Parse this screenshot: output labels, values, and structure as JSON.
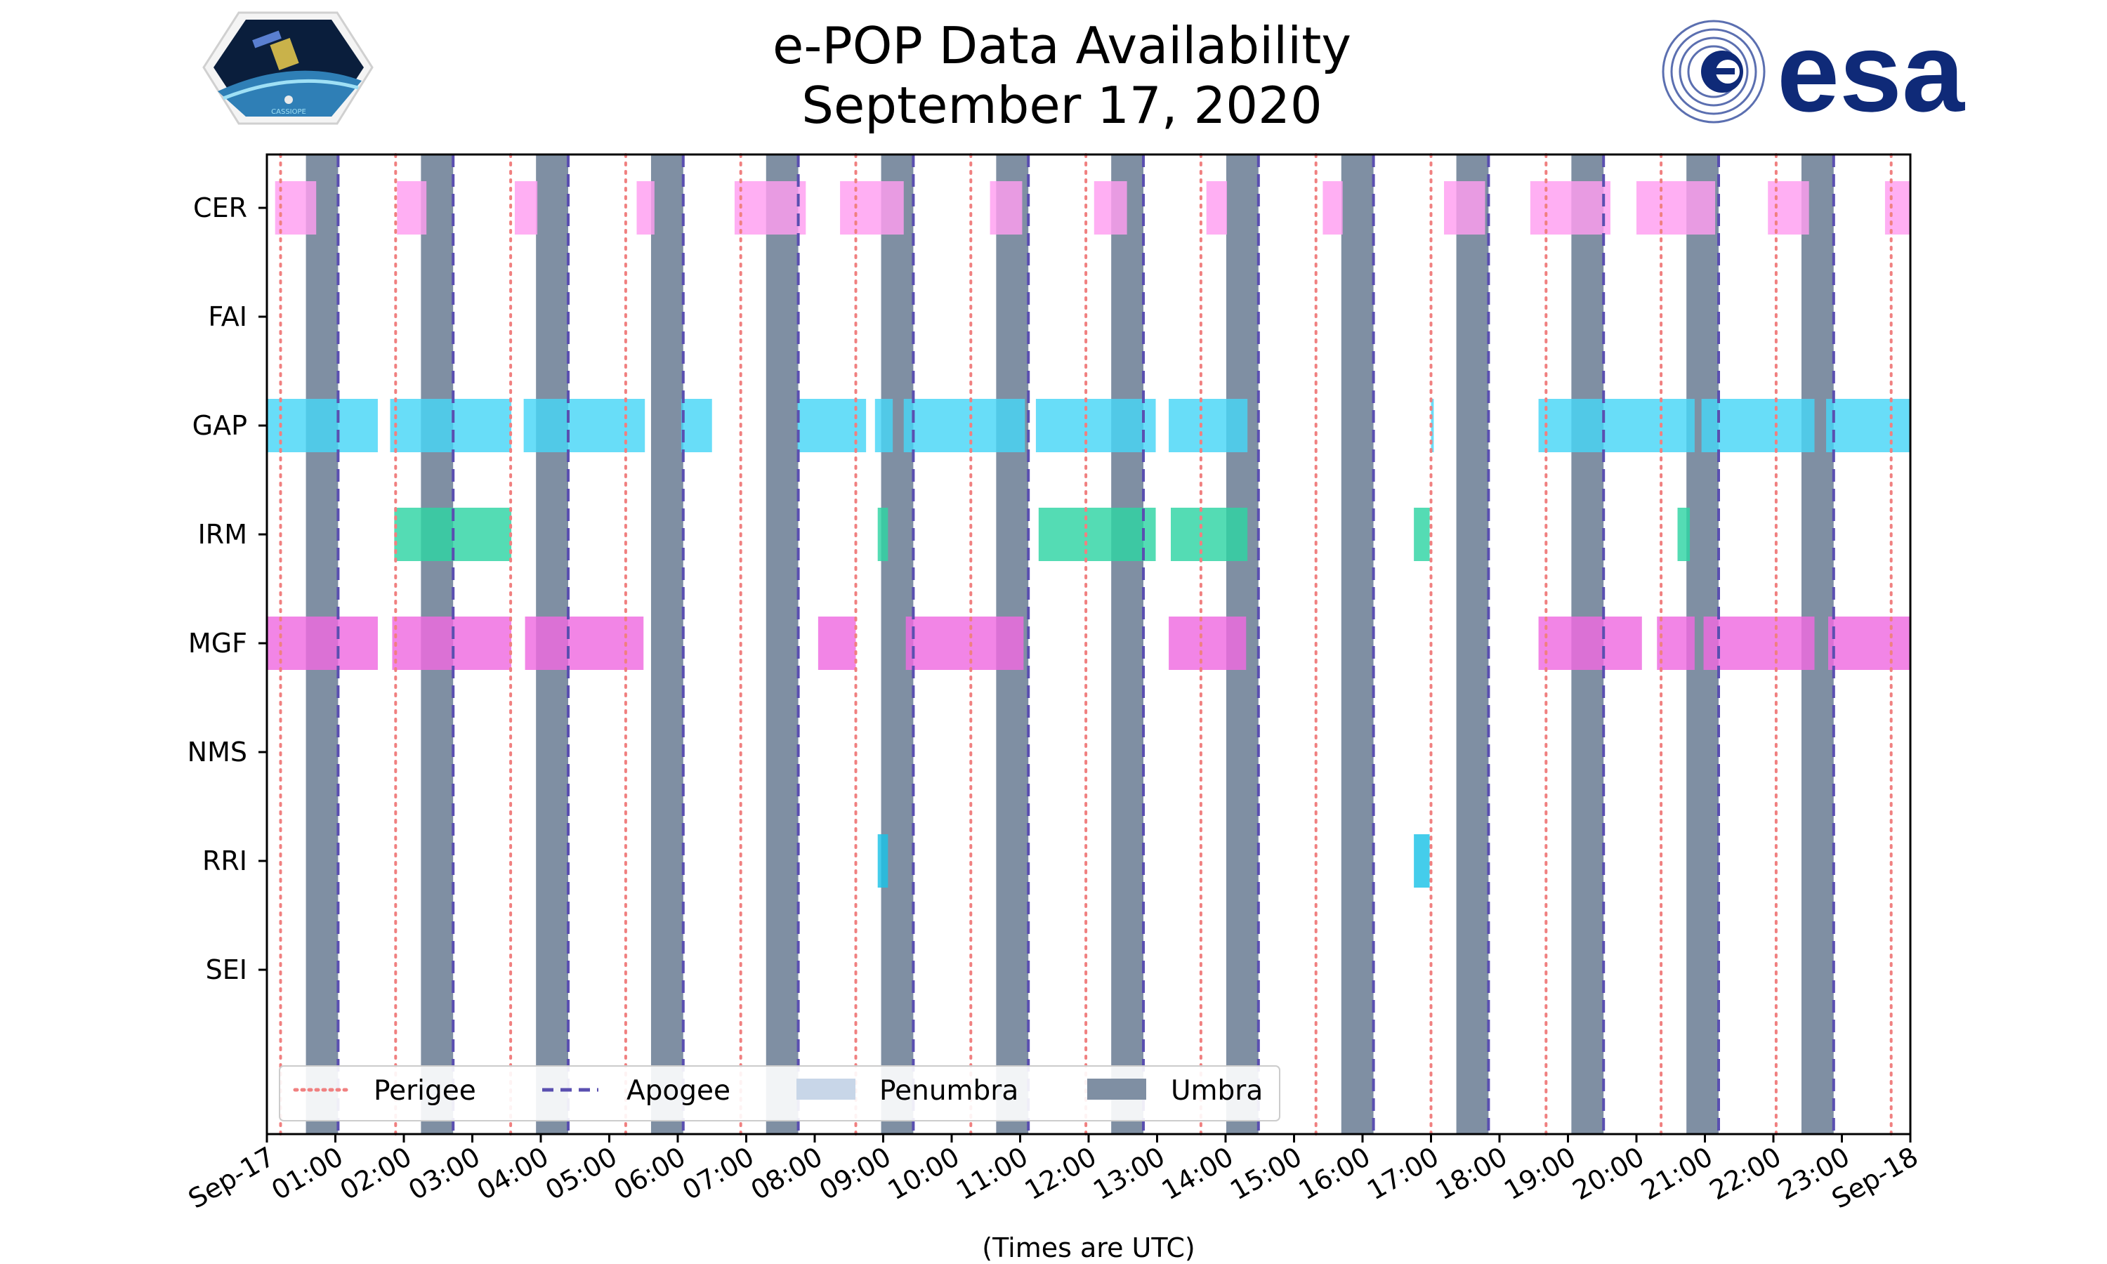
{
  "chart_data": {
    "type": "timeline",
    "title_line1": "e-POP Data Availability",
    "title_line2": "September 17, 2020",
    "xlabel": "(Times are UTC)",
    "xlim_hours": [
      0,
      24
    ],
    "x_ticks": [
      {
        "hour": 0,
        "label": "Sep-17"
      },
      {
        "hour": 1,
        "label": "01:00"
      },
      {
        "hour": 2,
        "label": "02:00"
      },
      {
        "hour": 3,
        "label": "03:00"
      },
      {
        "hour": 4,
        "label": "04:00"
      },
      {
        "hour": 5,
        "label": "05:00"
      },
      {
        "hour": 6,
        "label": "06:00"
      },
      {
        "hour": 7,
        "label": "07:00"
      },
      {
        "hour": 8,
        "label": "08:00"
      },
      {
        "hour": 9,
        "label": "09:00"
      },
      {
        "hour": 10,
        "label": "10:00"
      },
      {
        "hour": 11,
        "label": "11:00"
      },
      {
        "hour": 12,
        "label": "12:00"
      },
      {
        "hour": 13,
        "label": "13:00"
      },
      {
        "hour": 14,
        "label": "14:00"
      },
      {
        "hour": 15,
        "label": "15:00"
      },
      {
        "hour": 16,
        "label": "16:00"
      },
      {
        "hour": 17,
        "label": "17:00"
      },
      {
        "hour": 18,
        "label": "18:00"
      },
      {
        "hour": 19,
        "label": "19:00"
      },
      {
        "hour": 20,
        "label": "20:00"
      },
      {
        "hour": 21,
        "label": "21:00"
      },
      {
        "hour": 22,
        "label": "22:00"
      },
      {
        "hour": 23,
        "label": "23:00"
      },
      {
        "hour": 24,
        "label": "Sep-18"
      }
    ],
    "instruments": [
      "CER",
      "FAI",
      "GAP",
      "IRM",
      "MGF",
      "NMS",
      "RRI",
      "SEI"
    ],
    "series": [
      {
        "name": "CER",
        "color": "#ff9df0",
        "intervals": [
          [
            0.12,
            0.72
          ],
          [
            1.9,
            2.33
          ],
          [
            3.62,
            3.95
          ],
          [
            5.4,
            5.66
          ],
          [
            6.83,
            7.87
          ],
          [
            8.37,
            9.3
          ],
          [
            10.56,
            11.03
          ],
          [
            12.08,
            12.56
          ],
          [
            13.72,
            14.02
          ],
          [
            15.42,
            15.71
          ],
          [
            17.19,
            17.79
          ],
          [
            18.45,
            19.62
          ],
          [
            20.0,
            21.15
          ],
          [
            21.92,
            22.52
          ],
          [
            23.63,
            24.0
          ]
        ]
      },
      {
        "name": "FAI",
        "color": "#7cd6ff",
        "intervals": []
      },
      {
        "name": "GAP",
        "color": "#47d6f7",
        "intervals": [
          [
            0.0,
            1.62
          ],
          [
            1.8,
            3.57
          ],
          [
            3.75,
            5.52
          ],
          [
            6.05,
            6.5
          ],
          [
            7.75,
            8.75
          ],
          [
            8.88,
            9.14
          ],
          [
            9.3,
            11.07
          ],
          [
            11.23,
            12.98
          ],
          [
            13.17,
            14.32
          ],
          [
            17.0,
            17.04
          ],
          [
            18.57,
            20.85
          ],
          [
            20.95,
            22.6
          ],
          [
            22.77,
            24.0
          ]
        ]
      },
      {
        "name": "IRM",
        "color": "#2ed4a4",
        "intervals": [
          [
            1.86,
            3.57
          ],
          [
            8.92,
            9.07
          ],
          [
            11.27,
            12.98
          ],
          [
            13.2,
            14.32
          ],
          [
            16.75,
            16.98
          ],
          [
            20.6,
            20.78
          ]
        ]
      },
      {
        "name": "MGF",
        "color": "#ef6ae0",
        "intervals": [
          [
            0.0,
            1.62
          ],
          [
            1.83,
            3.57
          ],
          [
            3.77,
            5.5
          ],
          [
            8.05,
            8.6
          ],
          [
            9.33,
            11.05
          ],
          [
            13.17,
            14.3
          ],
          [
            18.57,
            20.08
          ],
          [
            20.3,
            20.85
          ],
          [
            20.98,
            22.6
          ],
          [
            22.8,
            24.0
          ]
        ]
      },
      {
        "name": "NMS",
        "color": "#8888ff",
        "intervals": []
      },
      {
        "name": "RRI",
        "color": "#1bc2e6",
        "intervals": [
          [
            8.92,
            9.07
          ],
          [
            16.75,
            16.98
          ]
        ]
      },
      {
        "name": "SEI",
        "color": "#aaaaaa",
        "intervals": []
      }
    ],
    "perigee_hours": [
      0.2,
      1.88,
      3.56,
      5.24,
      6.92,
      8.6,
      10.28,
      11.96,
      13.64,
      15.32,
      17.0,
      18.68,
      20.36,
      22.04,
      23.72
    ],
    "apogee_hours": [
      1.04,
      2.72,
      4.4,
      6.08,
      7.76,
      9.44,
      11.12,
      12.8,
      14.48,
      16.16,
      17.84,
      19.52,
      21.2,
      22.88
    ],
    "umbra_intervals": [
      [
        0.57,
        1.04
      ],
      [
        2.25,
        2.72
      ],
      [
        3.93,
        4.4
      ],
      [
        5.61,
        6.08
      ],
      [
        7.29,
        7.76
      ],
      [
        8.97,
        9.44
      ],
      [
        10.65,
        11.12
      ],
      [
        12.33,
        12.8
      ],
      [
        14.01,
        14.48
      ],
      [
        15.69,
        16.16
      ],
      [
        17.37,
        17.84
      ],
      [
        19.05,
        19.52
      ],
      [
        20.73,
        21.2
      ],
      [
        22.41,
        22.88
      ]
    ],
    "legend": {
      "placement": "bottom-left",
      "items": [
        {
          "label": "Perigee",
          "style": "dotted",
          "color": "#f08080"
        },
        {
          "label": "Apogee",
          "style": "dashed",
          "color": "#5a4fb0"
        },
        {
          "label": "Penumbra",
          "style": "patch",
          "color": "#c8d6e8"
        },
        {
          "label": "Umbra",
          "style": "patch",
          "color": "#7f8fa3"
        }
      ]
    }
  },
  "logos": {
    "mission_logo_text": "CASSIOPE",
    "agency_logo_text": "esa"
  },
  "colors": {
    "umbra": "#7f8fa3",
    "penumbra": "#c8d6e8",
    "perigee": "#f08080",
    "apogee": "#5a4fb0",
    "esa_blue": "#0f2a78"
  }
}
